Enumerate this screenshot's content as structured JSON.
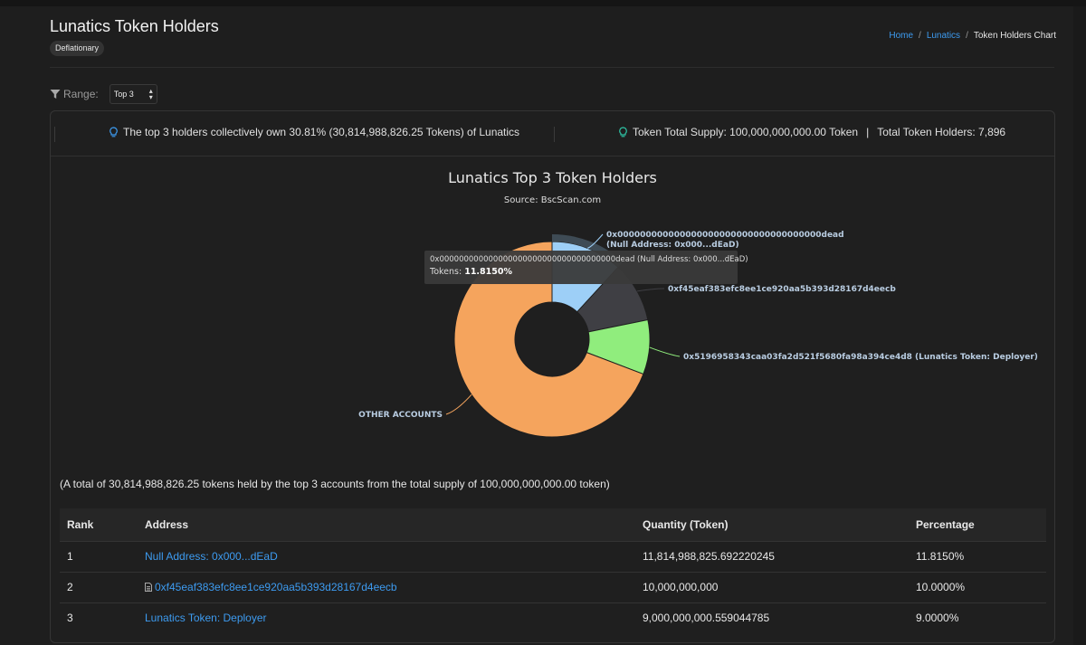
{
  "header": {
    "title": "Lunatics Token Holders",
    "tag": "Deflationary",
    "breadcrumb": [
      {
        "label": "Home"
      },
      {
        "label": "Lunatics"
      },
      {
        "label": "Token Holders Chart"
      }
    ],
    "separator": "/"
  },
  "filter": {
    "label": "Range:",
    "selected": "Top 3"
  },
  "info": {
    "summary": "The top 3 holders collectively own 30.81% (30,814,988,826.25 Tokens) of Lunatics",
    "supply": "Token Total Supply: 100,000,000,000.00 Token",
    "supply_sep": "|",
    "holders": "Total Token Holders: 7,896"
  },
  "colors": {
    "accent_link": "#3d9bf0",
    "slice_null": "#9dcff7",
    "slice_contract": "#3f3f44",
    "slice_deployer": "#90ed7d",
    "slice_other": "#f5a45d"
  },
  "chart_data": {
    "type": "pie",
    "variant": "donut",
    "title": "Lunatics Top 3 Token Holders",
    "subtitle": "Source: BscScan.com",
    "slices": [
      {
        "label": "0x000000000000000000000000000000000000dead",
        "sublabel": "(Null Address: 0x000...dEaD)",
        "value": 11.815,
        "color": "#9dcff7"
      },
      {
        "label": "0xf45eaf383efc8ee1ce920aa5b393d28167d4eecb",
        "value": 10.0,
        "color": "#3f3f44"
      },
      {
        "label": "0x5196958343caa03fa2d521f5680fa98a394ce4d8 (Lunatics Token: Deployer)",
        "value": 9.0,
        "color": "#90ed7d"
      },
      {
        "label": "OTHER ACCOUNTS",
        "value": 69.185,
        "color": "#f5a45d"
      }
    ],
    "tooltip": {
      "line1": "0x000000000000000000000000000000000000dead (Null Address: 0x000...dEaD)",
      "prefix": "Tokens: ",
      "value": "11.8150%"
    }
  },
  "total_note": "(A total of 30,814,988,826.25 tokens held by the top 3 accounts from the total supply of 100,000,000,000.00 token)",
  "table": {
    "headers": [
      "Rank",
      "Address",
      "Quantity (Token)",
      "Percentage"
    ],
    "rows": [
      {
        "rank": "1",
        "address": "Null Address: 0x000...dEaD",
        "quantity": "11,814,988,825.692220245",
        "percentage": "11.8150%",
        "contract_icon": false
      },
      {
        "rank": "2",
        "address": "0xf45eaf383efc8ee1ce920aa5b393d28167d4eecb",
        "quantity": "10,000,000,000",
        "percentage": "10.0000%",
        "contract_icon": true
      },
      {
        "rank": "3",
        "address": "Lunatics Token: Deployer",
        "quantity": "9,000,000,000.559044785",
        "percentage": "9.0000%",
        "contract_icon": false
      }
    ]
  }
}
